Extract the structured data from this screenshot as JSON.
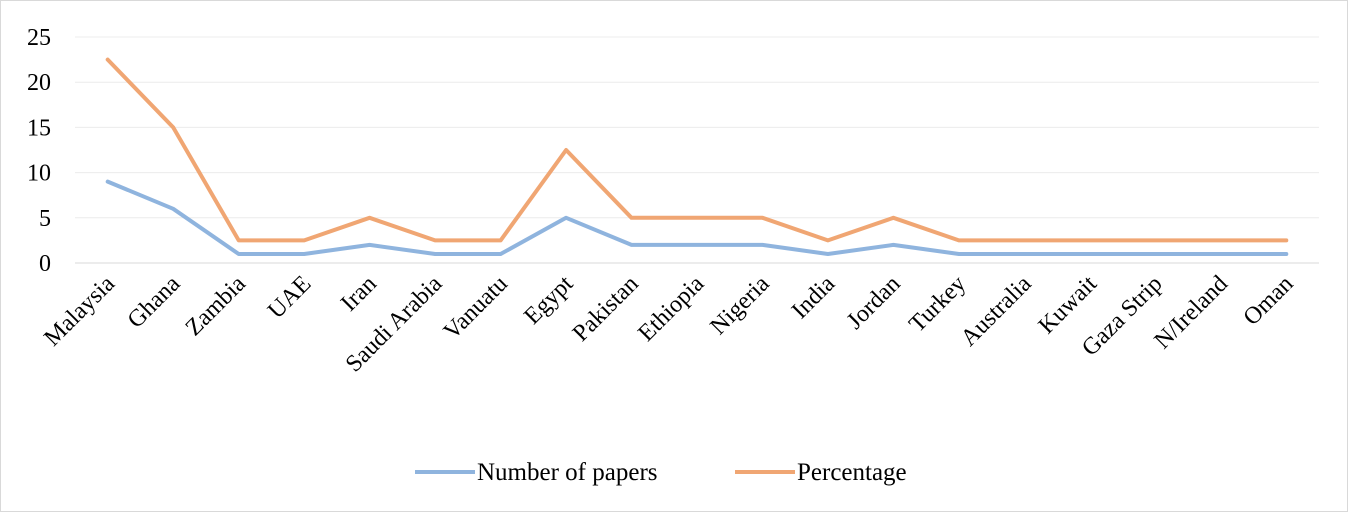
{
  "chart_data": {
    "type": "line",
    "categories": [
      "Malaysia",
      "Ghana",
      "Zambia",
      "UAE",
      "Iran",
      "Saudi Arabia",
      "Vanuatu",
      "Egypt",
      "Pakistan",
      "Ethiopia",
      "Nigeria",
      "India",
      "Jordan",
      "Turkey",
      "Australia",
      "Kuwait",
      "Gaza Strip",
      "N/Ireland",
      "Oman"
    ],
    "series": [
      {
        "name": "Number of papers",
        "color": "#8FB4DE",
        "values": [
          9,
          6,
          1,
          1,
          2,
          1,
          1,
          5,
          2,
          2,
          2,
          1,
          2,
          1,
          1,
          1,
          1,
          1,
          1
        ]
      },
      {
        "name": "Percentage",
        "color": "#F0A673",
        "values": [
          22.5,
          15,
          2.5,
          2.5,
          5,
          2.5,
          2.5,
          12.5,
          5,
          5,
          5,
          2.5,
          5,
          2.5,
          2.5,
          2.5,
          2.5,
          2.5,
          2.5
        ]
      }
    ],
    "yticks": [
      "0",
      "5",
      "10",
      "15",
      "20",
      "25"
    ],
    "ylim": [
      0,
      25
    ],
    "grid": true,
    "legend_position": "bottom"
  }
}
